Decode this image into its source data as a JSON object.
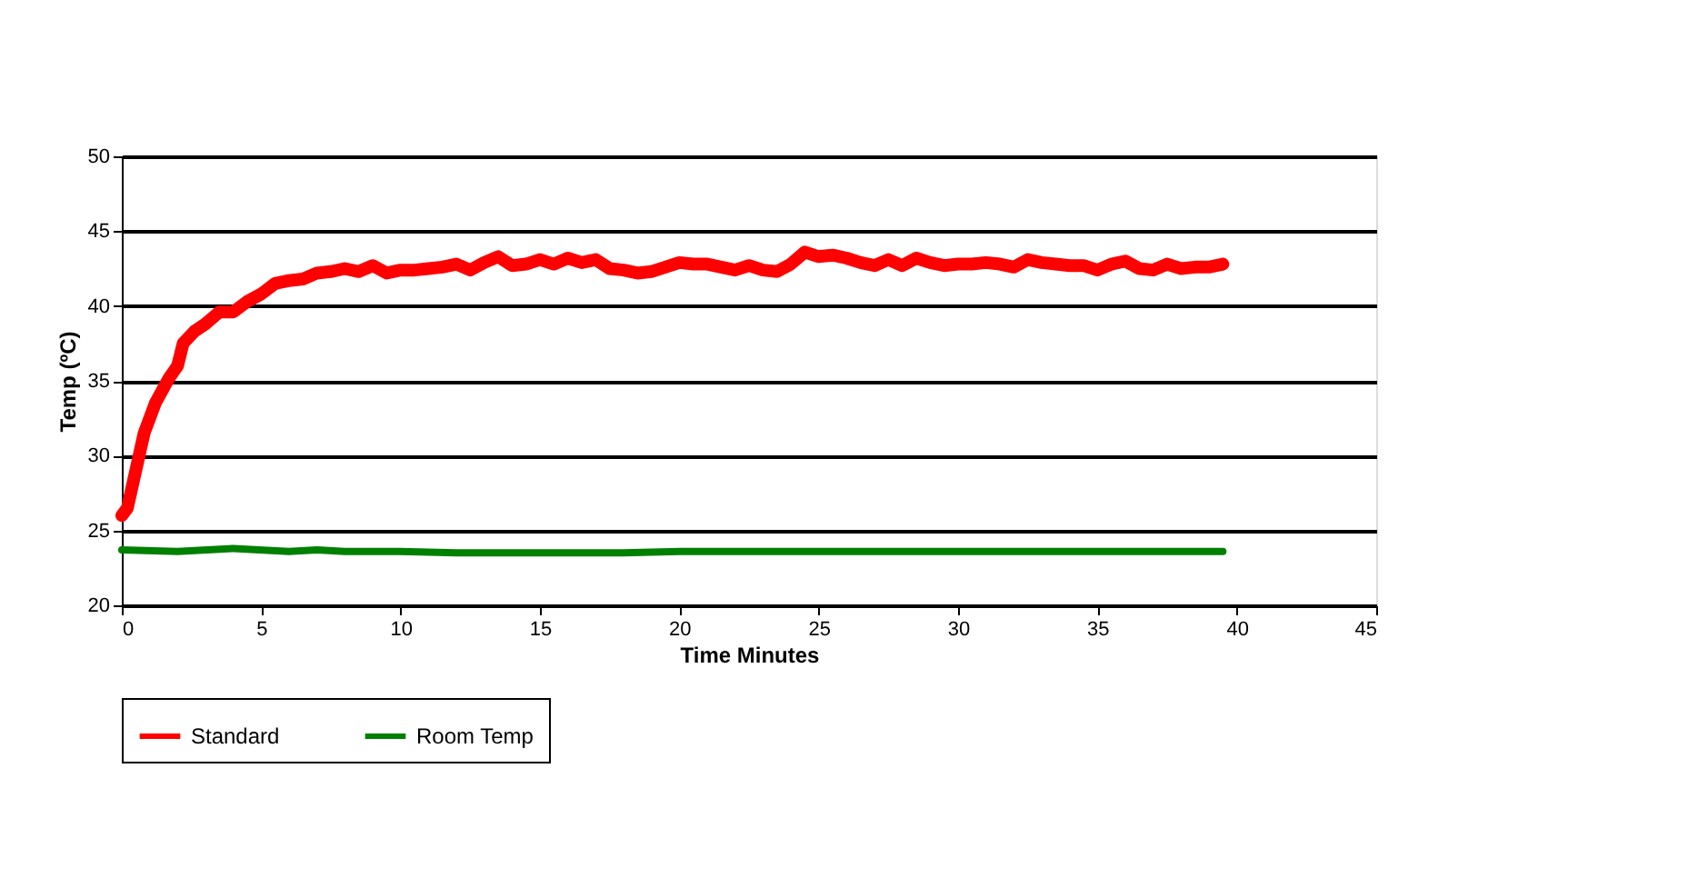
{
  "chart_data": {
    "type": "line",
    "xlabel": "Time Minutes",
    "ylabel": "Temp (ºC)",
    "xlim": [
      0,
      45
    ],
    "xticks": [
      0,
      5,
      10,
      15,
      20,
      25,
      30,
      35,
      40,
      45
    ],
    "ylim": [
      20,
      50
    ],
    "yticks": [
      20,
      25,
      30,
      35,
      40,
      45,
      50
    ],
    "grid": "y",
    "legend": "bottom",
    "marker": "none",
    "line_style": "solid",
    "series": [
      {
        "name": "Standard",
        "color": "#ff0000",
        "x": [
          0,
          0.2,
          0.5,
          0.8,
          1.2,
          1.7,
          2,
          2.2,
          2.6,
          3,
          3.5,
          4,
          4.5,
          5,
          5.5,
          6,
          6.5,
          7,
          7.5,
          8,
          8.5,
          9,
          9.5,
          10,
          10.5,
          11,
          11.5,
          12,
          12.5,
          13,
          13.5,
          14,
          14.5,
          15,
          15.5,
          16,
          16.5,
          17,
          17.5,
          18,
          18.5,
          19,
          19.5,
          20,
          20.5,
          21,
          21.5,
          22,
          22.5,
          23,
          23.5,
          24,
          24.5,
          25,
          25.5,
          26,
          26.5,
          27,
          27.5,
          28,
          28.5,
          29,
          29.5,
          30,
          30.5,
          31,
          31.5,
          32,
          32.5,
          33,
          33.5,
          34,
          34.5,
          35,
          35.5,
          36,
          36.5,
          37,
          37.5,
          38,
          38.5,
          39,
          39.5
        ],
        "values": [
          26,
          26.5,
          29,
          31.5,
          33.5,
          35.2,
          36,
          37.5,
          38.3,
          38.8,
          39.6,
          39.6,
          40.3,
          40.8,
          41.5,
          41.7,
          41.8,
          42.2,
          42.3,
          42.5,
          42.3,
          42.7,
          42.2,
          42.4,
          42.4,
          42.5,
          42.6,
          42.8,
          42.4,
          42.9,
          43.3,
          42.7,
          42.8,
          43.1,
          42.8,
          43.2,
          42.9,
          43.1,
          42.5,
          42.4,
          42.2,
          42.3,
          42.6,
          42.9,
          42.8,
          42.8,
          42.6,
          42.4,
          42.7,
          42.4,
          42.3,
          42.8,
          43.6,
          43.3,
          43.4,
          43.2,
          42.9,
          42.7,
          43.1,
          42.7,
          43.2,
          42.9,
          42.7,
          42.8,
          42.8,
          42.9,
          42.8,
          42.6,
          43.1,
          42.9,
          42.8,
          42.7,
          42.7,
          42.4,
          42.8,
          43,
          42.5,
          42.4,
          42.8,
          42.5,
          42.6,
          42.6,
          42.8
        ]
      },
      {
        "name": "Room Temp",
        "color": "#008000",
        "x": [
          0,
          2,
          4,
          6,
          7,
          8,
          10,
          12,
          14,
          16,
          18,
          20,
          22,
          24,
          26,
          28,
          30,
          32,
          34,
          36,
          38,
          39.5
        ],
        "values": [
          23.7,
          23.6,
          23.8,
          23.6,
          23.7,
          23.6,
          23.6,
          23.5,
          23.5,
          23.5,
          23.5,
          23.6,
          23.6,
          23.6,
          23.6,
          23.6,
          23.6,
          23.6,
          23.6,
          23.6,
          23.6,
          23.6
        ]
      }
    ]
  }
}
